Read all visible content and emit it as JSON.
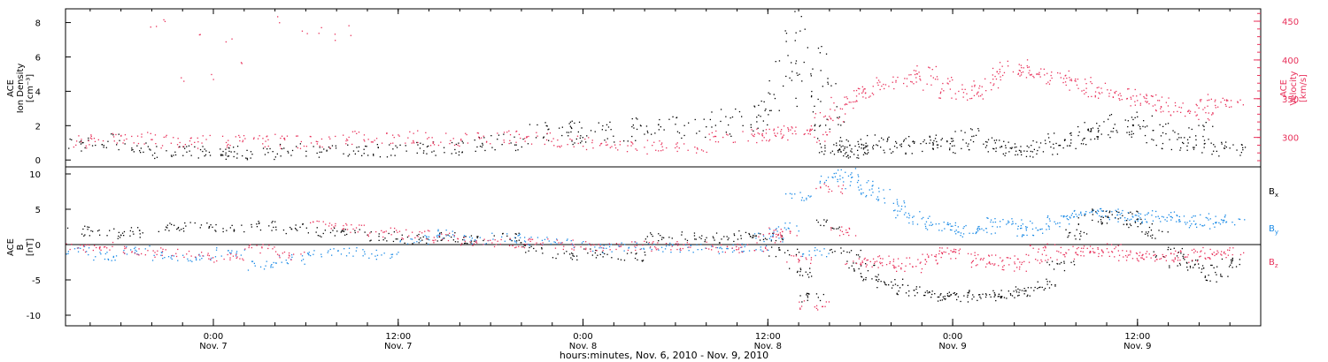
{
  "colors": {
    "black": "#000000",
    "red": "#e8305a",
    "blue": "#1a8ae6",
    "background": "#ffffff"
  },
  "chart_data": [
    {
      "type": "scatter",
      "ylabel_left": [
        "ACE",
        "Ion Density",
        "[cm⁻³]"
      ],
      "ylabel_right": [
        "ACE",
        "Velocity",
        "[km/s]"
      ],
      "x_range_hours_from_nov6_0000": [
        14.4,
        92.0
      ],
      "ylim_left": [
        -0.4,
        8.8
      ],
      "ylim_right": [
        262,
        466
      ],
      "left_ticks": [
        "0",
        "2",
        "4",
        "6",
        "8"
      ],
      "right_ticks": [
        "300",
        "350",
        "400",
        "450"
      ],
      "series": [
        {
          "axis": "left",
          "color": "black",
          "x": [
            15,
            17,
            19,
            21,
            23,
            24,
            25,
            27,
            29,
            31,
            33,
            35,
            37,
            39,
            41,
            43,
            45,
            47,
            48,
            49,
            51,
            53,
            55,
            57,
            59,
            60,
            61,
            62,
            63,
            63.5,
            64,
            64.3,
            64.6,
            65,
            65.5,
            66,
            67,
            68,
            69,
            70,
            71,
            72,
            73,
            74,
            75,
            76,
            77,
            78,
            79,
            80,
            81,
            82,
            83,
            84,
            85,
            86,
            87,
            88,
            89,
            90
          ],
          "y": [
            1.0,
            1.1,
            0.7,
            0.5,
            0.5,
            0.4,
            0.5,
            0.4,
            0.6,
            0.5,
            0.6,
            0.6,
            0.8,
            0.7,
            0.9,
            1.1,
            1.6,
            1.8,
            1.5,
            1.7,
            1.8,
            1.9,
            2.0,
            2.2,
            2.6,
            3.1,
            4.5,
            7.8,
            6.0,
            4.0,
            2.0,
            0.9,
            0.6,
            0.5,
            0.8,
            0.6,
            1.0,
            0.9,
            0.8,
            1.0,
            1.1,
            0.9,
            1.3,
            1.0,
            0.8,
            0.5,
            0.6,
            0.8,
            1.1,
            1.3,
            1.6,
            1.8,
            2.1,
            2.0,
            1.7,
            1.2,
            0.9,
            1.6,
            0.7,
            0.6
          ]
        },
        {
          "axis": "right",
          "color": "red",
          "x": [
            15,
            17,
            19,
            21,
            23,
            25,
            27,
            29,
            31,
            33,
            35,
            37,
            39,
            41,
            43,
            45,
            47,
            49,
            51,
            53,
            55,
            57,
            59,
            60,
            61,
            62,
            63,
            64,
            65,
            66,
            67,
            68,
            69,
            70,
            71,
            72,
            73,
            74,
            75,
            76,
            77,
            78,
            79,
            80,
            81,
            82,
            83,
            84,
            85,
            86,
            87,
            88,
            89,
            90
          ],
          "y": [
            296,
            297,
            300,
            296,
            295,
            296,
            297,
            295,
            295,
            300,
            301,
            301,
            298,
            300,
            301,
            298,
            295,
            294,
            290,
            288,
            287,
            300,
            302,
            303,
            305,
            308,
            303,
            330,
            345,
            355,
            362,
            370,
            378,
            385,
            370,
            360,
            358,
            370,
            382,
            392,
            386,
            380,
            378,
            370,
            362,
            360,
            356,
            350,
            347,
            342,
            337,
            332,
            348,
            345
          ]
        },
        {
          "axis": "right",
          "color": "red",
          "x": [
            20,
            21,
            22,
            23,
            24,
            25,
            26,
            28,
            30,
            31,
            32,
            33
          ],
          "y": [
            440,
            444,
            380,
            435,
            376,
            420,
            405,
            457,
            440,
            437,
            435,
            440
          ]
        }
      ]
    },
    {
      "type": "scatter",
      "ylabel_left": [
        "ACE",
        "B",
        "[nT]"
      ],
      "x_range_hours_from_nov6_0000": [
        14.4,
        92.0
      ],
      "ylim": [
        -11.5,
        11.0
      ],
      "left_ticks": [
        "10",
        "5",
        "0",
        "-5",
        "-10"
      ],
      "series": [
        {
          "name": "Bx",
          "label": "B",
          "sub": "x",
          "color": "black",
          "x": [
            15,
            17,
            19,
            21,
            23,
            25,
            27,
            29,
            31,
            33,
            35,
            37,
            39,
            41,
            43,
            45,
            47,
            49,
            51,
            53,
            55,
            57,
            59,
            60,
            61,
            62,
            63,
            64,
            65,
            66,
            67,
            68,
            69,
            70,
            71,
            72,
            73,
            74,
            75,
            76,
            77,
            78,
            79,
            80,
            81,
            82,
            83,
            84,
            85,
            86,
            87,
            88,
            89,
            90
          ],
          "y": [
            2.0,
            1.6,
            1.8,
            2.5,
            2.6,
            2.4,
            2.7,
            2.3,
            1.8,
            1.7,
            1.2,
            0.9,
            1.1,
            0.7,
            1.0,
            -0.5,
            -1.5,
            -1.2,
            -1.6,
            1.1,
            1.2,
            1.0,
            1.5,
            1.0,
            -1.0,
            -4.0,
            -7.5,
            3.0,
            -1.0,
            -3.0,
            -4.5,
            -5.5,
            -6.3,
            -7.0,
            -7.3,
            -7.4,
            -7.2,
            -7.1,
            -7.2,
            -6.8,
            -6.5,
            -5.5,
            -3.0,
            1.5,
            3.5,
            4.5,
            4.2,
            3.0,
            1.5,
            -1.0,
            -2.5,
            -3.0,
            -4.5,
            -2.5
          ]
        },
        {
          "name": "By",
          "label": "B",
          "sub": "y",
          "color": "blue",
          "x": [
            15,
            17,
            19,
            21,
            23,
            25,
            27,
            29,
            31,
            33,
            35,
            37,
            39,
            41,
            43,
            45,
            47,
            49,
            51,
            53,
            55,
            57,
            59,
            60,
            61,
            62,
            63,
            64,
            65,
            66,
            67,
            68,
            69,
            70,
            71,
            72,
            73,
            74,
            75,
            76,
            77,
            78,
            79,
            80,
            81,
            82,
            83,
            84,
            85,
            86,
            87,
            88,
            89,
            90
          ],
          "y": [
            -0.8,
            -1.5,
            -0.8,
            -1.5,
            -2.0,
            -1.0,
            -3.0,
            -2.0,
            -1.0,
            -1.0,
            -1.4,
            0.8,
            1.6,
            0.7,
            1.0,
            0.5,
            0.3,
            -0.5,
            -0.2,
            -0.4,
            -0.5,
            -0.6,
            -0.5,
            1.0,
            2.5,
            7.0,
            -1.0,
            9.5,
            10.2,
            8.5,
            7.5,
            6.0,
            4.5,
            3.5,
            2.6,
            2.5,
            1.8,
            2.2,
            3.5,
            3.0,
            1.8,
            2.5,
            3.5,
            4.2,
            4.5,
            4.8,
            4.0,
            3.8,
            4.2,
            4.0,
            3.5,
            3.0,
            3.8,
            3.4
          ]
        },
        {
          "name": "Bz",
          "label": "B",
          "sub": "z",
          "color": "red",
          "x": [
            15,
            17,
            19,
            21,
            23,
            25,
            27,
            29,
            31,
            33,
            35,
            37,
            39,
            41,
            43,
            45,
            47,
            49,
            51,
            53,
            55,
            57,
            59,
            60,
            61,
            62,
            63,
            64,
            65,
            66,
            67,
            68,
            69,
            70,
            71,
            72,
            73,
            74,
            75,
            76,
            77,
            78,
            79,
            80,
            81,
            82,
            83,
            84,
            85,
            86,
            87,
            88,
            89,
            90
          ],
          "y": [
            -0.5,
            -0.3,
            -0.8,
            -1.0,
            -1.5,
            -1.8,
            -0.5,
            -1.5,
            3.0,
            2.5,
            1.8,
            1.5,
            1.0,
            0.5,
            0.3,
            0.2,
            0.0,
            -0.2,
            -0.1,
            -0.2,
            -0.2,
            -0.3,
            -0.5,
            1.0,
            2.0,
            -2.0,
            -8.5,
            8.0,
            2.0,
            -2.5,
            -2.0,
            -2.5,
            -3.5,
            -2.0,
            -1.5,
            -1.0,
            -1.5,
            -2.5,
            -2.0,
            -3.0,
            -2.0,
            -0.5,
            -1.5,
            -0.8,
            -1.0,
            -0.5,
            -1.5,
            -1.5,
            -2.0,
            -1.5,
            -1.8,
            -1.0,
            -1.5,
            -1.0
          ]
        }
      ]
    }
  ],
  "x_axis": {
    "ticks": [
      {
        "hours": 24,
        "time": "0:00",
        "date": "Nov. 7"
      },
      {
        "hours": 36,
        "time": "12:00",
        "date": "Nov. 7"
      },
      {
        "hours": 48,
        "time": "0:00",
        "date": "Nov. 8"
      },
      {
        "hours": 60,
        "time": "12:00",
        "date": "Nov. 8"
      },
      {
        "hours": 72,
        "time": "0:00",
        "date": "Nov. 9"
      },
      {
        "hours": 84,
        "time": "12:00",
        "date": "Nov. 9"
      }
    ],
    "xlabel": "hours:minutes, Nov.  6, 2010 - Nov.  9, 2010"
  }
}
